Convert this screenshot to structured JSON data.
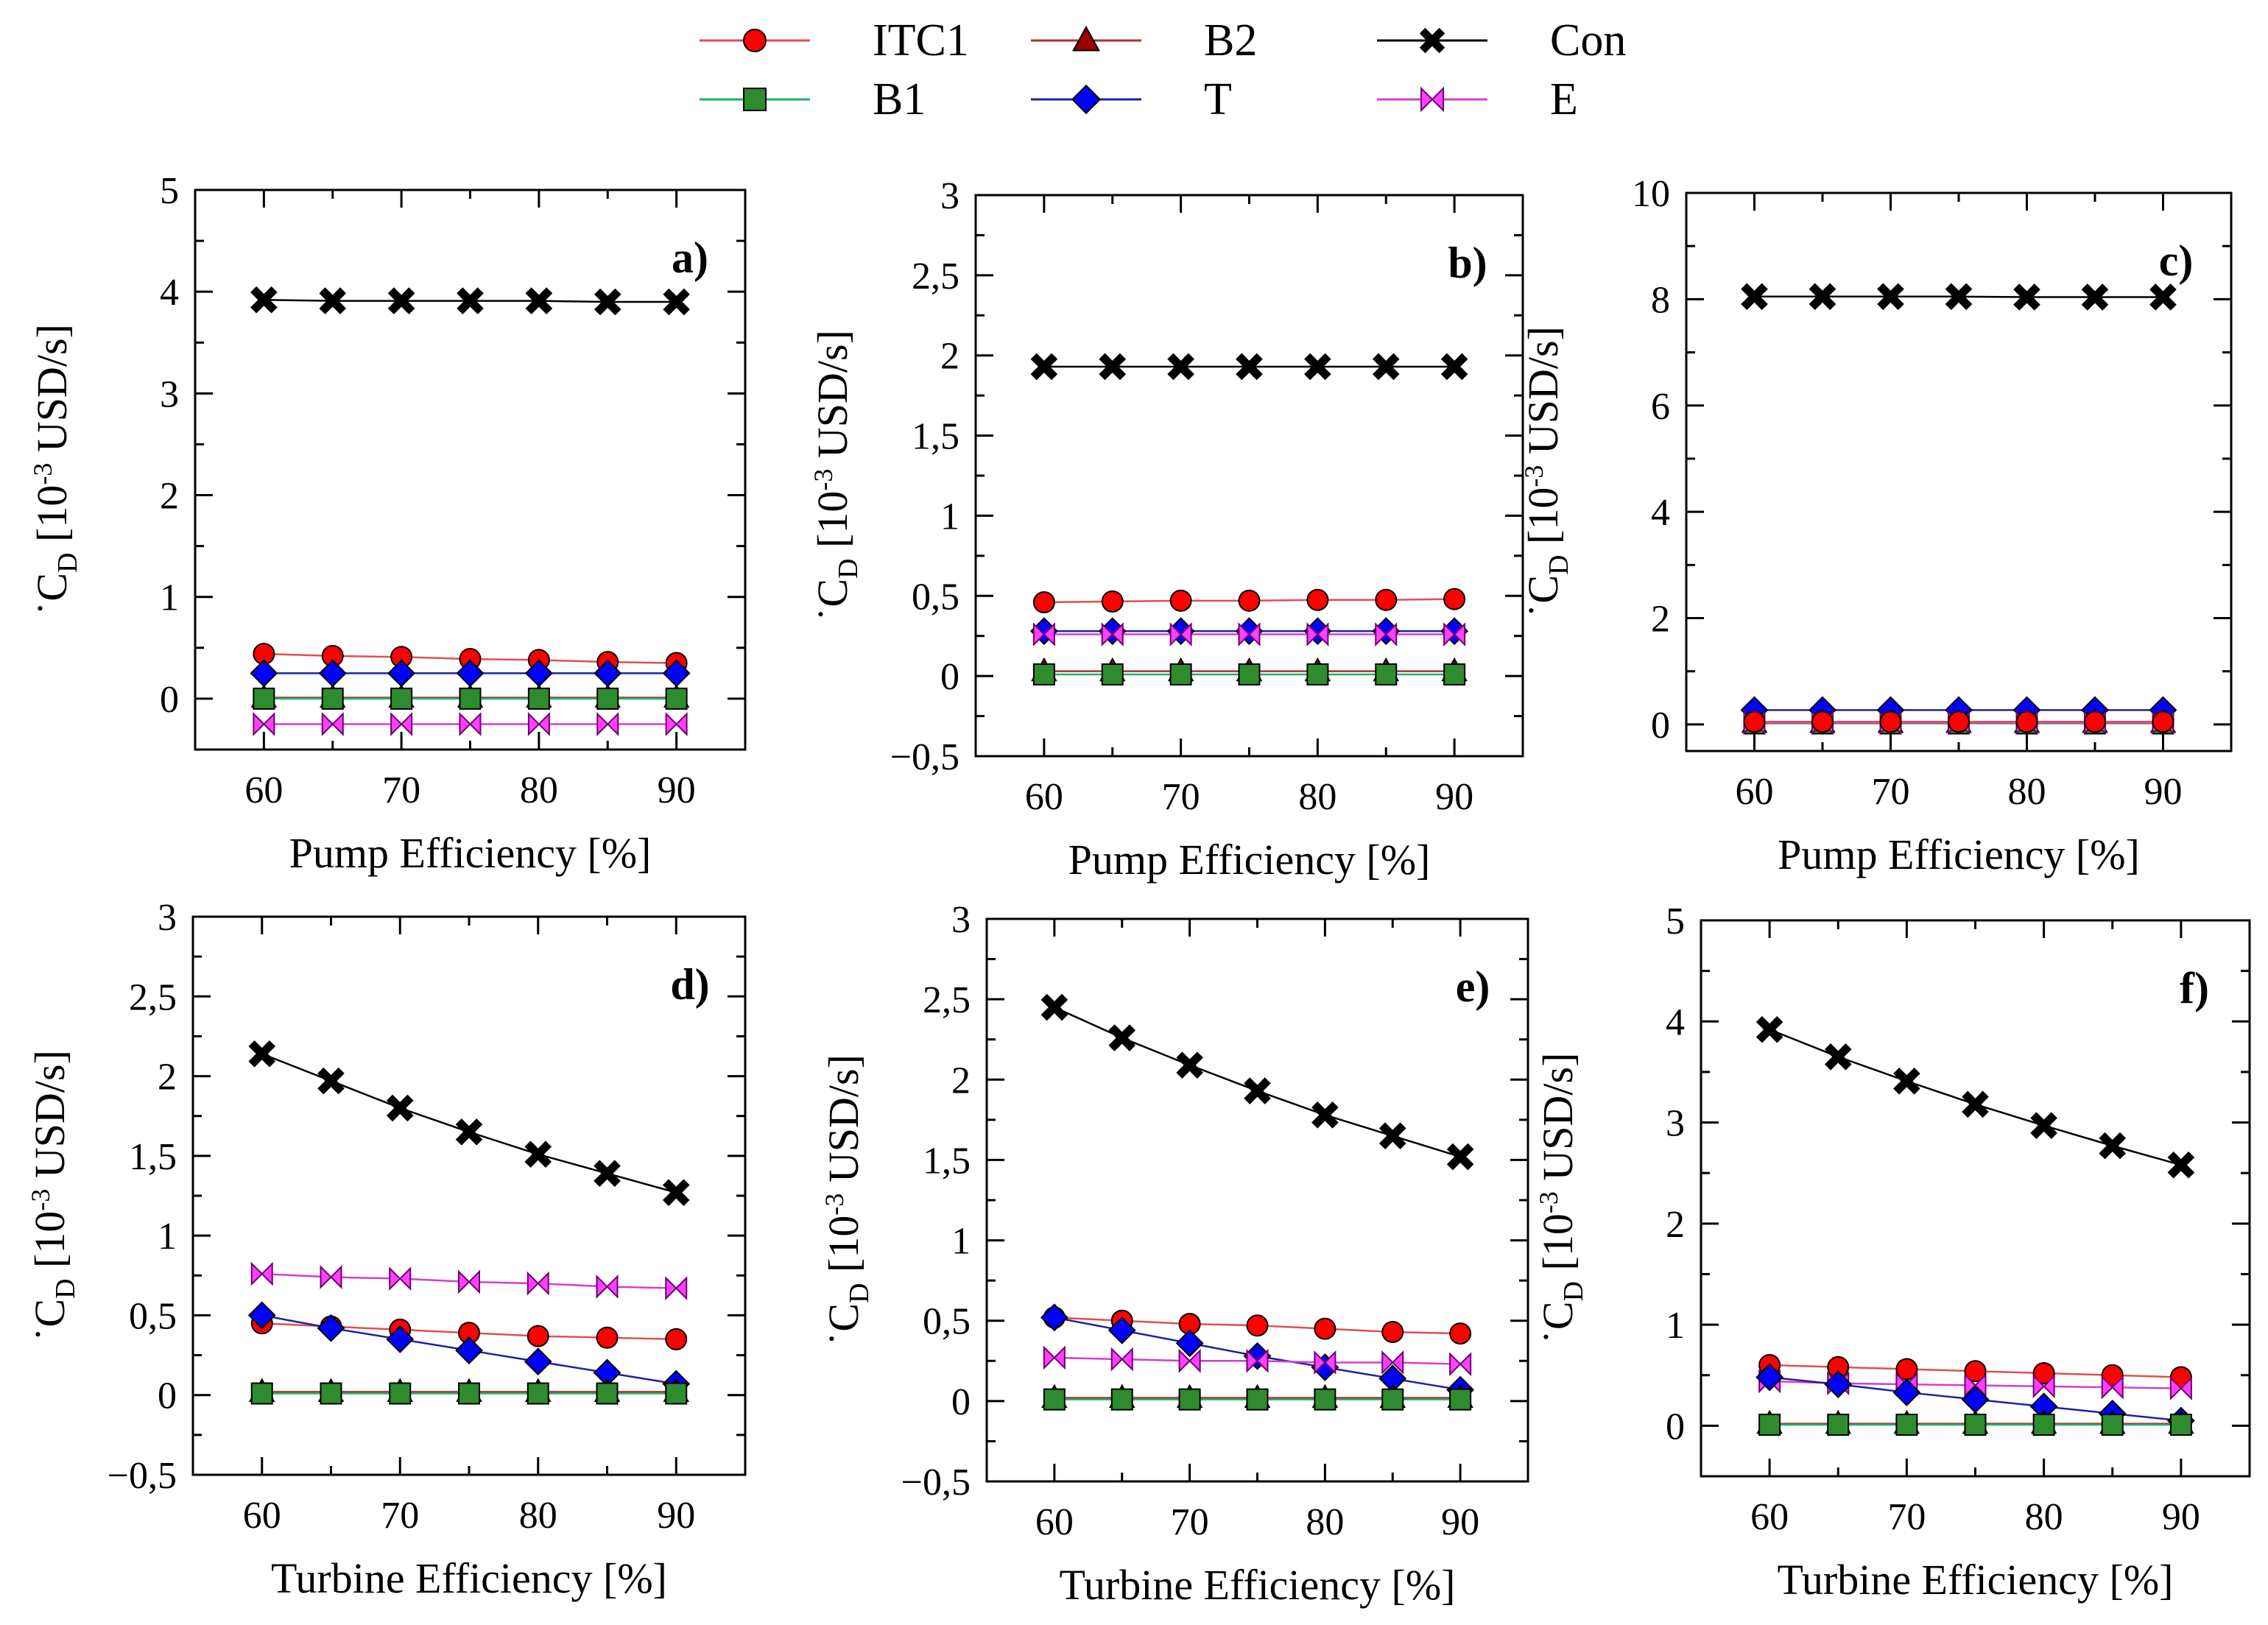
{
  "legend": {
    "entries": [
      {
        "key": "ITC1",
        "label": "ITC1",
        "color": "#ff0000",
        "line": "#e05050",
        "marker": "circle"
      },
      {
        "key": "B2",
        "label": "B2",
        "color": "#9a0000",
        "line": "#b03030",
        "marker": "triangle"
      },
      {
        "key": "Con",
        "label": "Con",
        "color": "#000000",
        "line": "#000000",
        "marker": "cross"
      },
      {
        "key": "B1",
        "label": "B1",
        "color": "#2e8b2e",
        "line": "#20b070",
        "marker": "square"
      },
      {
        "key": "T",
        "label": "T",
        "color": "#0000ff",
        "line": "#2020a0",
        "marker": "diamond"
      },
      {
        "key": "E",
        "label": "E",
        "color": "#ff40ff",
        "line": "#d040d0",
        "marker": "bowtie"
      }
    ]
  },
  "chart_data": [
    {
      "type": "line",
      "panel_label": "a)",
      "xlabel": "Pump Efficiency [%]",
      "ylabel_main": "C",
      "ylabel_sub": "D",
      "ylabel_units": "[10",
      "ylabel_exp": "-3",
      "ylabel_tail": " USD/s]",
      "x": [
        60,
        65,
        70,
        75,
        80,
        85,
        90
      ],
      "xlim": [
        55,
        95
      ],
      "xticks": [
        60,
        70,
        80,
        90
      ],
      "xticklabels": [
        "60",
        "70",
        "80",
        "90"
      ],
      "ylim": [
        -0.5,
        5
      ],
      "yticks": [
        0,
        1,
        2,
        3,
        4,
        5
      ],
      "yticklabels": [
        "0",
        "1",
        "2",
        "3",
        "4",
        "5"
      ],
      "series": [
        {
          "name": "Con",
          "values": [
            3.92,
            3.91,
            3.91,
            3.91,
            3.91,
            3.9,
            3.9
          ]
        },
        {
          "name": "ITC1",
          "values": [
            0.44,
            0.42,
            0.41,
            0.39,
            0.38,
            0.36,
            0.35
          ]
        },
        {
          "name": "T",
          "values": [
            0.25,
            0.25,
            0.25,
            0.25,
            0.25,
            0.25,
            0.25
          ]
        },
        {
          "name": "B2",
          "values": [
            0.01,
            0.01,
            0.01,
            0.01,
            0.01,
            0.01,
            0.01
          ]
        },
        {
          "name": "B1",
          "values": [
            0.0,
            0.0,
            0.0,
            0.0,
            0.0,
            0.0,
            0.0
          ]
        },
        {
          "name": "E",
          "values": [
            -0.25,
            -0.25,
            -0.25,
            -0.25,
            -0.25,
            -0.25,
            -0.25
          ]
        }
      ]
    },
    {
      "type": "line",
      "panel_label": "b)",
      "xlabel": "Pump Efficiency [%]",
      "ylabel_main": "C",
      "ylabel_sub": "D",
      "ylabel_units": "[10",
      "ylabel_exp": "-3",
      "ylabel_tail": " USD/s]",
      "x": [
        60,
        65,
        70,
        75,
        80,
        85,
        90
      ],
      "xlim": [
        55,
        95
      ],
      "xticks": [
        60,
        70,
        80,
        90
      ],
      "xticklabels": [
        "60",
        "70",
        "80",
        "90"
      ],
      "ylim": [
        -0.5,
        3
      ],
      "yticks": [
        -0.5,
        0,
        0.5,
        1,
        1.5,
        2,
        2.5,
        3
      ],
      "yticklabels": [
        "−0,5",
        "0",
        "0,5",
        "1",
        "1,5",
        "2",
        "2,5",
        "3"
      ],
      "series": [
        {
          "name": "Con",
          "values": [
            1.93,
            1.93,
            1.93,
            1.93,
            1.93,
            1.93,
            1.93
          ]
        },
        {
          "name": "ITC1",
          "values": [
            0.46,
            0.465,
            0.47,
            0.47,
            0.475,
            0.475,
            0.48
          ]
        },
        {
          "name": "T",
          "values": [
            0.28,
            0.28,
            0.28,
            0.28,
            0.28,
            0.28,
            0.28
          ]
        },
        {
          "name": "E",
          "values": [
            0.26,
            0.26,
            0.26,
            0.26,
            0.26,
            0.26,
            0.26
          ]
        },
        {
          "name": "B2",
          "values": [
            0.03,
            0.03,
            0.03,
            0.03,
            0.03,
            0.03,
            0.03
          ]
        },
        {
          "name": "B1",
          "values": [
            0.01,
            0.01,
            0.01,
            0.01,
            0.01,
            0.01,
            0.01
          ]
        }
      ]
    },
    {
      "type": "line",
      "panel_label": "c)",
      "xlabel": "Pump Efficiency [%]",
      "ylabel_main": "C",
      "ylabel_sub": "D",
      "ylabel_units": "[10",
      "ylabel_exp": "-3",
      "ylabel_tail": " USD/s]",
      "x": [
        60,
        65,
        70,
        75,
        80,
        85,
        90
      ],
      "xlim": [
        55,
        95
      ],
      "xticks": [
        60,
        70,
        80,
        90
      ],
      "xticklabels": [
        "60",
        "70",
        "80",
        "90"
      ],
      "ylim": [
        -0.5,
        10
      ],
      "yticks": [
        0,
        2,
        4,
        6,
        8,
        10
      ],
      "yticklabels": [
        "0",
        "2",
        "4",
        "6",
        "8",
        "10"
      ],
      "series": [
        {
          "name": "Con",
          "values": [
            8.05,
            8.05,
            8.05,
            8.05,
            8.04,
            8.04,
            8.04
          ]
        },
        {
          "name": "T",
          "values": [
            0.27,
            0.27,
            0.27,
            0.27,
            0.27,
            0.27,
            0.27
          ]
        },
        {
          "name": "B2",
          "values": [
            0.03,
            0.03,
            0.03,
            0.03,
            0.03,
            0.03,
            0.03
          ]
        },
        {
          "name": "B1",
          "values": [
            0.02,
            0.02,
            0.02,
            0.02,
            0.02,
            0.02,
            0.02
          ]
        },
        {
          "name": "E",
          "values": [
            0.03,
            0.03,
            0.03,
            0.03,
            0.03,
            0.03,
            0.03
          ]
        },
        {
          "name": "ITC1",
          "values": [
            0.05,
            0.05,
            0.05,
            0.05,
            0.05,
            0.05,
            0.05
          ]
        }
      ]
    },
    {
      "type": "line",
      "panel_label": "d)",
      "xlabel": "Turbine  Efficiency [%]",
      "ylabel_main": "C",
      "ylabel_sub": "D",
      "ylabel_units": "[10",
      "ylabel_exp": "-3",
      "ylabel_tail": " USD/s]",
      "x": [
        60,
        65,
        70,
        75,
        80,
        85,
        90
      ],
      "xlim": [
        55,
        95
      ],
      "xticks": [
        60,
        70,
        80,
        90
      ],
      "xticklabels": [
        "60",
        "70",
        "80",
        "90"
      ],
      "ylim": [
        -0.5,
        3
      ],
      "yticks": [
        -0.5,
        0,
        0.5,
        1,
        1.5,
        2,
        2.5,
        3
      ],
      "yticklabels": [
        "−0,5",
        "0",
        "0,5",
        "1",
        "1,5",
        "2",
        "2,5",
        "3"
      ],
      "series": [
        {
          "name": "Con",
          "values": [
            2.14,
            1.97,
            1.8,
            1.65,
            1.51,
            1.39,
            1.27
          ]
        },
        {
          "name": "E",
          "values": [
            0.76,
            0.74,
            0.73,
            0.71,
            0.7,
            0.68,
            0.67
          ]
        },
        {
          "name": "ITC1",
          "values": [
            0.45,
            0.43,
            0.41,
            0.39,
            0.37,
            0.36,
            0.35
          ]
        },
        {
          "name": "T",
          "values": [
            0.5,
            0.42,
            0.35,
            0.28,
            0.21,
            0.14,
            0.07
          ]
        },
        {
          "name": "B2",
          "values": [
            0.02,
            0.02,
            0.02,
            0.02,
            0.02,
            0.02,
            0.02
          ]
        },
        {
          "name": "B1",
          "values": [
            0.01,
            0.01,
            0.01,
            0.01,
            0.01,
            0.01,
            0.01
          ]
        }
      ]
    },
    {
      "type": "line",
      "panel_label": "e)",
      "xlabel": "Turbine  Efficiency [%]",
      "ylabel_main": "C",
      "ylabel_sub": "D",
      "ylabel_units": "[10",
      "ylabel_exp": "-3",
      "ylabel_tail": " USD/s]",
      "x": [
        60,
        65,
        70,
        75,
        80,
        85,
        90
      ],
      "xlim": [
        55,
        95
      ],
      "xticks": [
        60,
        70,
        80,
        90
      ],
      "xticklabels": [
        "60",
        "70",
        "80",
        "90"
      ],
      "ylim": [
        -0.5,
        3
      ],
      "yticks": [
        -0.5,
        0,
        0.5,
        1,
        1.5,
        2,
        2.5,
        3
      ],
      "yticklabels": [
        "−0,5",
        "0",
        "0,5",
        "1",
        "1,5",
        "2",
        "2,5",
        "3"
      ],
      "series": [
        {
          "name": "Con",
          "values": [
            2.45,
            2.26,
            2.09,
            1.93,
            1.78,
            1.65,
            1.52
          ]
        },
        {
          "name": "ITC1",
          "values": [
            0.52,
            0.5,
            0.48,
            0.47,
            0.45,
            0.43,
            0.42
          ]
        },
        {
          "name": "T",
          "values": [
            0.52,
            0.44,
            0.36,
            0.28,
            0.21,
            0.14,
            0.07
          ]
        },
        {
          "name": "E",
          "values": [
            0.27,
            0.26,
            0.25,
            0.25,
            0.24,
            0.24,
            0.23
          ]
        },
        {
          "name": "B2",
          "values": [
            0.02,
            0.02,
            0.02,
            0.02,
            0.02,
            0.02,
            0.02
          ]
        },
        {
          "name": "B1",
          "values": [
            0.01,
            0.01,
            0.01,
            0.01,
            0.01,
            0.01,
            0.01
          ]
        }
      ]
    },
    {
      "type": "line",
      "panel_label": "f)",
      "xlabel": "Turbine  Efficiency [%]",
      "ylabel_main": "C",
      "ylabel_sub": "D",
      "ylabel_units": "[10",
      "ylabel_exp": "-3",
      "ylabel_tail": " USD/s]",
      "x": [
        60,
        65,
        70,
        75,
        80,
        85,
        90
      ],
      "xlim": [
        55,
        95
      ],
      "xticks": [
        60,
        70,
        80,
        90
      ],
      "xticklabels": [
        "60",
        "70",
        "80",
        "90"
      ],
      "ylim": [
        -0.5,
        5
      ],
      "yticks": [
        0,
        1,
        2,
        3,
        4,
        5
      ],
      "yticklabels": [
        "0",
        "1",
        "2",
        "3",
        "4",
        "5"
      ],
      "series": [
        {
          "name": "Con",
          "values": [
            3.92,
            3.65,
            3.41,
            3.18,
            2.97,
            2.77,
            2.58
          ]
        },
        {
          "name": "ITC1",
          "values": [
            0.6,
            0.58,
            0.56,
            0.54,
            0.52,
            0.5,
            0.48
          ]
        },
        {
          "name": "E",
          "values": [
            0.44,
            0.42,
            0.41,
            0.4,
            0.39,
            0.38,
            0.37
          ]
        },
        {
          "name": "T",
          "values": [
            0.48,
            0.41,
            0.33,
            0.26,
            0.19,
            0.12,
            0.05
          ]
        },
        {
          "name": "B2",
          "values": [
            0.02,
            0.02,
            0.02,
            0.02,
            0.02,
            0.02,
            0.02
          ]
        },
        {
          "name": "B1",
          "values": [
            0.01,
            0.01,
            0.01,
            0.01,
            0.01,
            0.01,
            0.01
          ]
        }
      ]
    }
  ]
}
